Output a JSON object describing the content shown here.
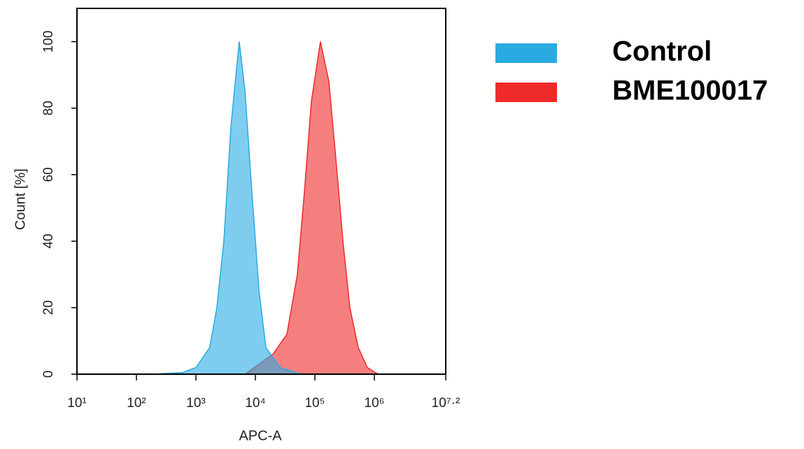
{
  "chart_data": {
    "type": "area",
    "xlabel": "APC-A",
    "ylabel": "Count [%]",
    "xscale": "log",
    "xlim": [
      10,
      15848932
    ],
    "xticks": [
      {
        "value": 10,
        "label": "10¹"
      },
      {
        "value": 100,
        "label": "10²"
      },
      {
        "value": 1000,
        "label": "10³"
      },
      {
        "value": 10000,
        "label": "10⁴"
      },
      {
        "value": 100000,
        "label": "10⁵"
      },
      {
        "value": 1000000,
        "label": "10⁶"
      },
      {
        "value": 15848932,
        "label": "10⁷·²"
      }
    ],
    "ylim": [
      0,
      110
    ],
    "yticks": [
      0,
      20,
      40,
      60,
      80,
      100
    ],
    "legend": "right",
    "series": [
      {
        "name": "Control",
        "color": "#29abe2",
        "x": [
          200,
          600,
          1000,
          1700,
          2250,
          2950,
          3900,
          5350,
          6700,
          8700,
          11500,
          15000,
          26000,
          58000
        ],
        "values": [
          0,
          0.5,
          2,
          8,
          20,
          40,
          75,
          100,
          85,
          55,
          25,
          8,
          2,
          0
        ]
      },
      {
        "name": "BME100017",
        "color": "#ee2a2a",
        "x": [
          6700,
          11500,
          19700,
          33800,
          50800,
          66700,
          87300,
          124000,
          172000,
          225000,
          296000,
          387000,
          536000,
          762000,
          1146000
        ],
        "values": [
          0,
          3,
          6,
          12,
          30,
          55,
          82,
          100,
          88,
          65,
          40,
          20,
          8,
          2,
          0
        ]
      }
    ]
  }
}
